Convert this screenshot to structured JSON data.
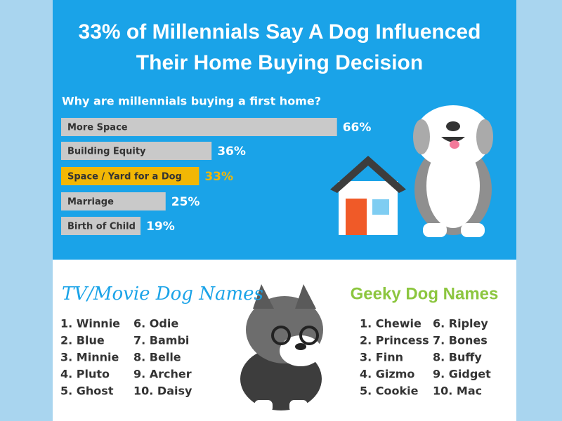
{
  "chart_data": {
    "type": "bar",
    "title": [
      "33% of Millennials Say A Dog Influenced",
      "Their Home Buying Decision"
    ],
    "subtitle": "Why are millennials buying a first home?",
    "categories": [
      "More Space",
      "Building Equity",
      "Space / Yard for a Dog",
      "Marriage",
      "Birth of Child"
    ],
    "values": [
      66,
      36,
      33,
      25,
      19
    ],
    "value_labels": [
      "66%",
      "36%",
      "33%",
      "25%",
      "19%"
    ],
    "colors": [
      "#c9c9c9",
      "#c9c9c9",
      "#f2b705",
      "#c9c9c9",
      "#c9c9c9"
    ]
  },
  "tv_names": {
    "title": "TV/Movie Dog Names",
    "items": [
      "1. Winnie",
      "2. Blue",
      "3. Minnie",
      "4. Pluto",
      "5. Ghost",
      "6. Odie",
      "7. Bambi",
      "8. Belle",
      "9. Archer",
      "10. Daisy"
    ]
  },
  "geeky_names": {
    "title": "Geeky Dog Names",
    "items": [
      "1. Chewie",
      "2. Princess",
      "3. Finn",
      "4. Gizmo",
      "5. Cookie",
      "6. Ripley",
      "7. Bones",
      "8. Buffy",
      "9. Gidget",
      "10. Mac"
    ]
  }
}
